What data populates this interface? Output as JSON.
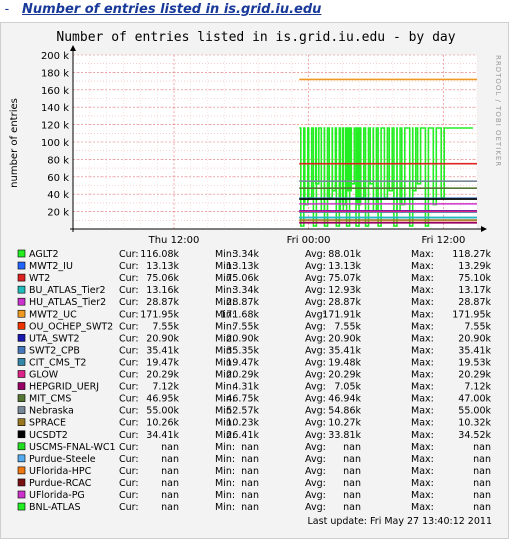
{
  "header": {
    "expand_icon_text": "-",
    "link_text": "Number of entries listed in is.grid.iu.edu"
  },
  "watermark": "RRDTOOL / TOBI OETIKER",
  "last_update": "Last update: Fri May 27 13:40:12 2011",
  "chart_data": {
    "type": "line",
    "title": "Number of entries listed in is.grid.iu.edu - by day",
    "ylabel": "number of entries",
    "xlabel": "",
    "ylim": [
      0,
      200000
    ],
    "y_ticks": [
      20000,
      40000,
      60000,
      80000,
      100000,
      120000,
      140000,
      160000,
      180000,
      200000
    ],
    "y_tick_labels": [
      "20 k",
      "40 k",
      "60 k",
      "80 k",
      "100 k",
      "120 k",
      "140 k",
      "160 k",
      "180 k",
      "200 k"
    ],
    "x_ticks": [
      {
        "label": "Thu 12:00",
        "pos": 0.25
      },
      {
        "label": "Fri 00:00",
        "pos": 0.583
      },
      {
        "label": "Fri 12:00",
        "pos": 0.917
      }
    ],
    "grid": true,
    "x_domain": [
      0,
      1
    ],
    "data_start": 0.56,
    "series": [
      {
        "name": "AGLT2",
        "color": "#22ee22",
        "cur": "116.08k",
        "min": "3.34k",
        "avg": "88.01k",
        "max": "118.27k",
        "flat": 116080,
        "noisy": true
      },
      {
        "name": "MWT2_IU",
        "color": "#2266ff",
        "cur": "13.13k",
        "min": "13.13k",
        "avg": "13.13k",
        "max": "13.29k",
        "flat": 13130
      },
      {
        "name": "WT2",
        "color": "#dd2222",
        "cur": "75.06k",
        "min": "75.06k",
        "avg": "75.07k",
        "max": "75.10k",
        "flat": 75060
      },
      {
        "name": "BU_ATLAS_Tier2",
        "color": "#22bbbb",
        "cur": "13.16k",
        "min": "3.34k",
        "avg": "12.93k",
        "max": "13.17k",
        "flat": 13160
      },
      {
        "name": "HU_ATLAS_Tier2",
        "color": "#cc33cc",
        "cur": "28.87k",
        "min": "28.87k",
        "avg": "28.87k",
        "max": "28.87k",
        "flat": 28870
      },
      {
        "name": "MWT2_UC",
        "color": "#ee9922",
        "cur": "171.95k",
        "min": "171.68k",
        "avg": "171.91k",
        "max": "171.95k",
        "flat": 171950
      },
      {
        "name": "OU_OCHEP_SWT2",
        "color": "#ee3300",
        "cur": "7.55k",
        "min": "7.55k",
        "avg": "7.55k",
        "max": "7.55k",
        "flat": 7550
      },
      {
        "name": "UTA_SWT2",
        "color": "#1a1ab0",
        "cur": "20.90k",
        "min": "20.90k",
        "avg": "20.90k",
        "max": "20.90k",
        "flat": 20900
      },
      {
        "name": "SWT2_CPB",
        "color": "#4477bb",
        "cur": "35.41k",
        "min": "35.35k",
        "avg": "35.41k",
        "max": "35.41k",
        "flat": 35410
      },
      {
        "name": "CIT_CMS_T2",
        "color": "#3388aa",
        "cur": "19.47k",
        "min": "19.47k",
        "avg": "19.48k",
        "max": "19.53k",
        "flat": 19470
      },
      {
        "name": "GLOW",
        "color": "#dd2288",
        "cur": "20.29k",
        "min": "20.29k",
        "avg": "20.29k",
        "max": "20.29k",
        "flat": 20290
      },
      {
        "name": "HEPGRID_UERJ",
        "color": "#990066",
        "cur": "7.12k",
        "min": "4.31k",
        "avg": "7.05k",
        "max": "7.12k",
        "flat": 7120
      },
      {
        "name": "MIT_CMS",
        "color": "#557733",
        "cur": "46.95k",
        "min": "46.75k",
        "avg": "46.94k",
        "max": "47.00k",
        "flat": 46950
      },
      {
        "name": "Nebraska",
        "color": "#778899",
        "cur": "55.00k",
        "min": "52.57k",
        "avg": "54.86k",
        "max": "55.00k",
        "flat": 55000
      },
      {
        "name": "SPRACE",
        "color": "#997722",
        "cur": "10.26k",
        "min": "10.23k",
        "avg": "10.27k",
        "max": "10.32k",
        "flat": 10260
      },
      {
        "name": "UCSDT2",
        "color": "#000000",
        "cur": "34.41k",
        "min": "26.41k",
        "avg": "33.81k",
        "max": "34.52k",
        "flat": 34410
      },
      {
        "name": "USCMS-FNAL-WC1",
        "color": "#22dd22",
        "cur": "nan",
        "min": "nan",
        "avg": "nan",
        "max": "nan"
      },
      {
        "name": "Purdue-Steele",
        "color": "#55aaee",
        "cur": "nan",
        "min": "nan",
        "avg": "nan",
        "max": "nan"
      },
      {
        "name": "UFlorida-HPC",
        "color": "#ee7711",
        "cur": "nan",
        "min": "nan",
        "avg": "nan",
        "max": "nan"
      },
      {
        "name": "Purdue-RCAC",
        "color": "#771111",
        "cur": "nan",
        "min": "nan",
        "avg": "nan",
        "max": "nan"
      },
      {
        "name": "UFlorida-PG",
        "color": "#cc33cc",
        "cur": "nan",
        "min": "nan",
        "avg": "nan",
        "max": "nan"
      },
      {
        "name": "BNL-ATLAS",
        "color": "#22ee22",
        "cur": "nan",
        "min": "nan",
        "avg": "nan",
        "max": "nan"
      }
    ],
    "stat_labels": {
      "cur": "Cur:",
      "min": "Min:",
      "avg": "Avg:",
      "max": "Max:"
    }
  }
}
